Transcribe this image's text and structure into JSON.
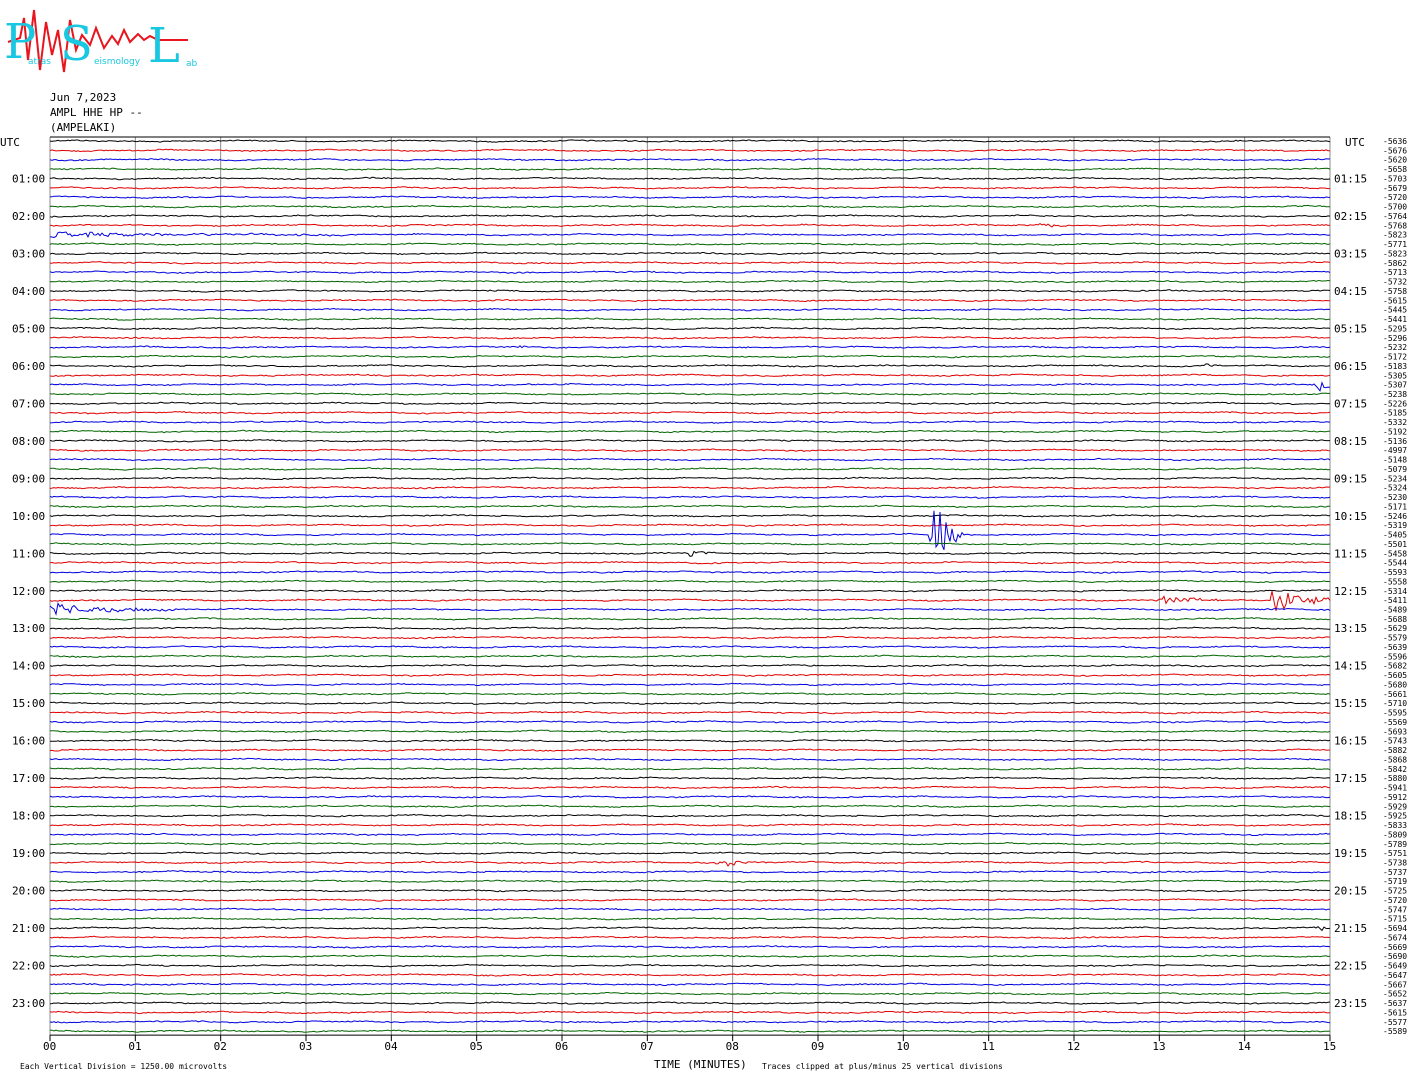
{
  "logo": {
    "big_letters": [
      "P",
      "S",
      "L"
    ],
    "small_texts": [
      "atras",
      "eismology",
      "ab"
    ],
    "colors": {
      "cyan": "#19c8e0",
      "red": "#e8141e"
    }
  },
  "header": {
    "date": "Jun 7,2023",
    "channel": "AMPL HHE HP --",
    "station": "(AMPELAKI)"
  },
  "chart_data": {
    "type": "line",
    "title": "",
    "left_axis_label": "UTC",
    "right_axis_label": "UTC",
    "left_hours": [
      "01:00",
      "02:00",
      "03:00",
      "04:00",
      "05:00",
      "06:00",
      "07:00",
      "08:00",
      "09:00",
      "10:00",
      "11:00",
      "12:00",
      "13:00",
      "14:00",
      "15:00",
      "16:00",
      "17:00",
      "18:00",
      "19:00",
      "20:00",
      "21:00",
      "22:00",
      "23:00"
    ],
    "right_times": [
      "01:15",
      "02:15",
      "03:15",
      "04:15",
      "05:15",
      "06:15",
      "07:15",
      "08:15",
      "09:15",
      "10:15",
      "11:15",
      "12:15",
      "13:15",
      "14:15",
      "15:15",
      "16:15",
      "17:15",
      "18:15",
      "19:15",
      "20:15",
      "21:15",
      "22:15",
      "23:15"
    ],
    "trace_colors": [
      "#000000",
      "#e00000",
      "#0000e0",
      "#006400"
    ],
    "offsets": [
      -5636,
      -5676,
      -5620,
      -5658,
      -5703,
      -5679,
      -5720,
      -5700,
      -5764,
      -5768,
      -5823,
      -5771,
      -5823,
      -5862,
      -5713,
      -5732,
      -5758,
      -5615,
      -5445,
      -5441,
      -5295,
      -5296,
      -5232,
      -5172,
      -5183,
      -5305,
      -5307,
      -5238,
      -5226,
      -5185,
      -5332,
      -5192,
      -5136,
      -4997,
      -5148,
      -5079,
      -5234,
      -5324,
      -5230,
      -5171,
      -5246,
      -5319,
      -5405,
      -5501,
      -5458,
      -5544,
      -5593,
      -5558,
      -5314,
      -5411,
      -5489,
      -5688,
      -5629,
      -5579,
      -5639,
      -5596,
      -5682,
      -5605,
      -5680,
      -5661,
      -5710,
      -5595,
      -5569,
      -5693,
      -5743,
      -5882,
      -5868,
      -5842,
      -5880,
      -5941,
      -5912,
      -5929,
      -5925,
      -5833,
      -5809,
      -5789,
      -5751,
      -5738,
      -5737,
      -5719,
      -5725,
      -5720,
      -5747,
      -5715,
      -5694,
      -5674,
      -5669,
      -5690,
      -5649,
      -5647,
      -5667,
      -5652,
      -5637,
      -5615,
      -5577,
      -5589
    ],
    "xlabel": "TIME (MINUTES)",
    "x_ticks": [
      "00",
      "01",
      "02",
      "03",
      "04",
      "05",
      "06",
      "07",
      "08",
      "09",
      "10",
      "11",
      "12",
      "13",
      "14",
      "15"
    ],
    "xlim": [
      0,
      15
    ],
    "rows_per_hour": 4,
    "events": [
      {
        "trace": 9,
        "minute": 11.6,
        "amp": 4,
        "width": 0.3
      },
      {
        "trace": 10,
        "minute": 0.0,
        "amp": 3,
        "width": 3.5
      },
      {
        "trace": 22,
        "minute": 5.45,
        "amp": 4,
        "width": 0.2
      },
      {
        "trace": 24,
        "minute": 13.5,
        "amp": 4,
        "width": 0.2
      },
      {
        "trace": 26,
        "minute": 14.85,
        "amp": 8,
        "width": 0.3
      },
      {
        "trace": 42,
        "minute": 10.35,
        "amp": 40,
        "width": 0.35
      },
      {
        "trace": 44,
        "minute": 7.5,
        "amp": 3,
        "width": 0.3
      },
      {
        "trace": 49,
        "minute": 13.0,
        "amp": 4,
        "width": 1.0
      },
      {
        "trace": 49,
        "minute": 14.3,
        "amp": 12,
        "width": 1.0
      },
      {
        "trace": 50,
        "minute": 0.0,
        "amp": 6,
        "width": 1.6
      },
      {
        "trace": 77,
        "minute": 7.85,
        "amp": 7,
        "width": 0.35
      },
      {
        "trace": 84,
        "minute": 14.9,
        "amp": 4,
        "width": 0.2
      }
    ],
    "footer_left": "Each Vertical Division = 1250.00 microvolts",
    "footer_right": "Traces clipped at plus/minus 25 vertical divisions"
  }
}
